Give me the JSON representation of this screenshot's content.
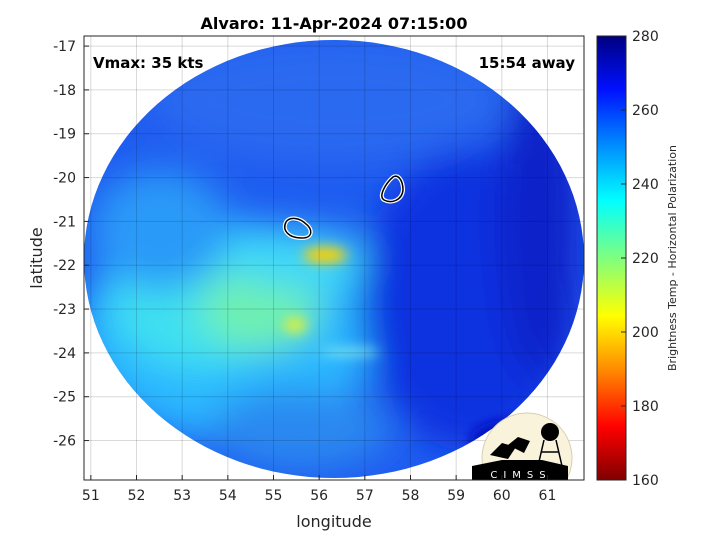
{
  "chart_data": {
    "type": "heatmap",
    "title": "Alvaro: 11-Apr-2024 07:15:00",
    "xlabel": "longitude",
    "ylabel": "latitude",
    "xlim": [
      50.85,
      61.8
    ],
    "ylim": [
      -26.9,
      -16.77
    ],
    "xticks": [
      51,
      52,
      53,
      54,
      55,
      56,
      57,
      58,
      59,
      60,
      61
    ],
    "yticks": [
      -17,
      -18,
      -19,
      -20,
      -21,
      -22,
      -23,
      -24,
      -25,
      -26
    ],
    "grid": true,
    "annotations": {
      "vmax": "Vmax: 35 kts",
      "away": "15:54 away"
    },
    "colorbar": {
      "label": "Brightness Temp - Horizontal Polarization",
      "range": [
        160,
        280
      ],
      "ticks": [
        160,
        180,
        200,
        220,
        240,
        260,
        280
      ],
      "colormap": "jet"
    },
    "coldest_region": {
      "lon": 56.1,
      "lat": -21.8,
      "value_approx": 205
    },
    "contours": [
      {
        "lon": 55.6,
        "lat": -21.1
      },
      {
        "lon": 57.7,
        "lat": -20.1
      }
    ]
  },
  "logo": {
    "text": "CIMSS"
  }
}
